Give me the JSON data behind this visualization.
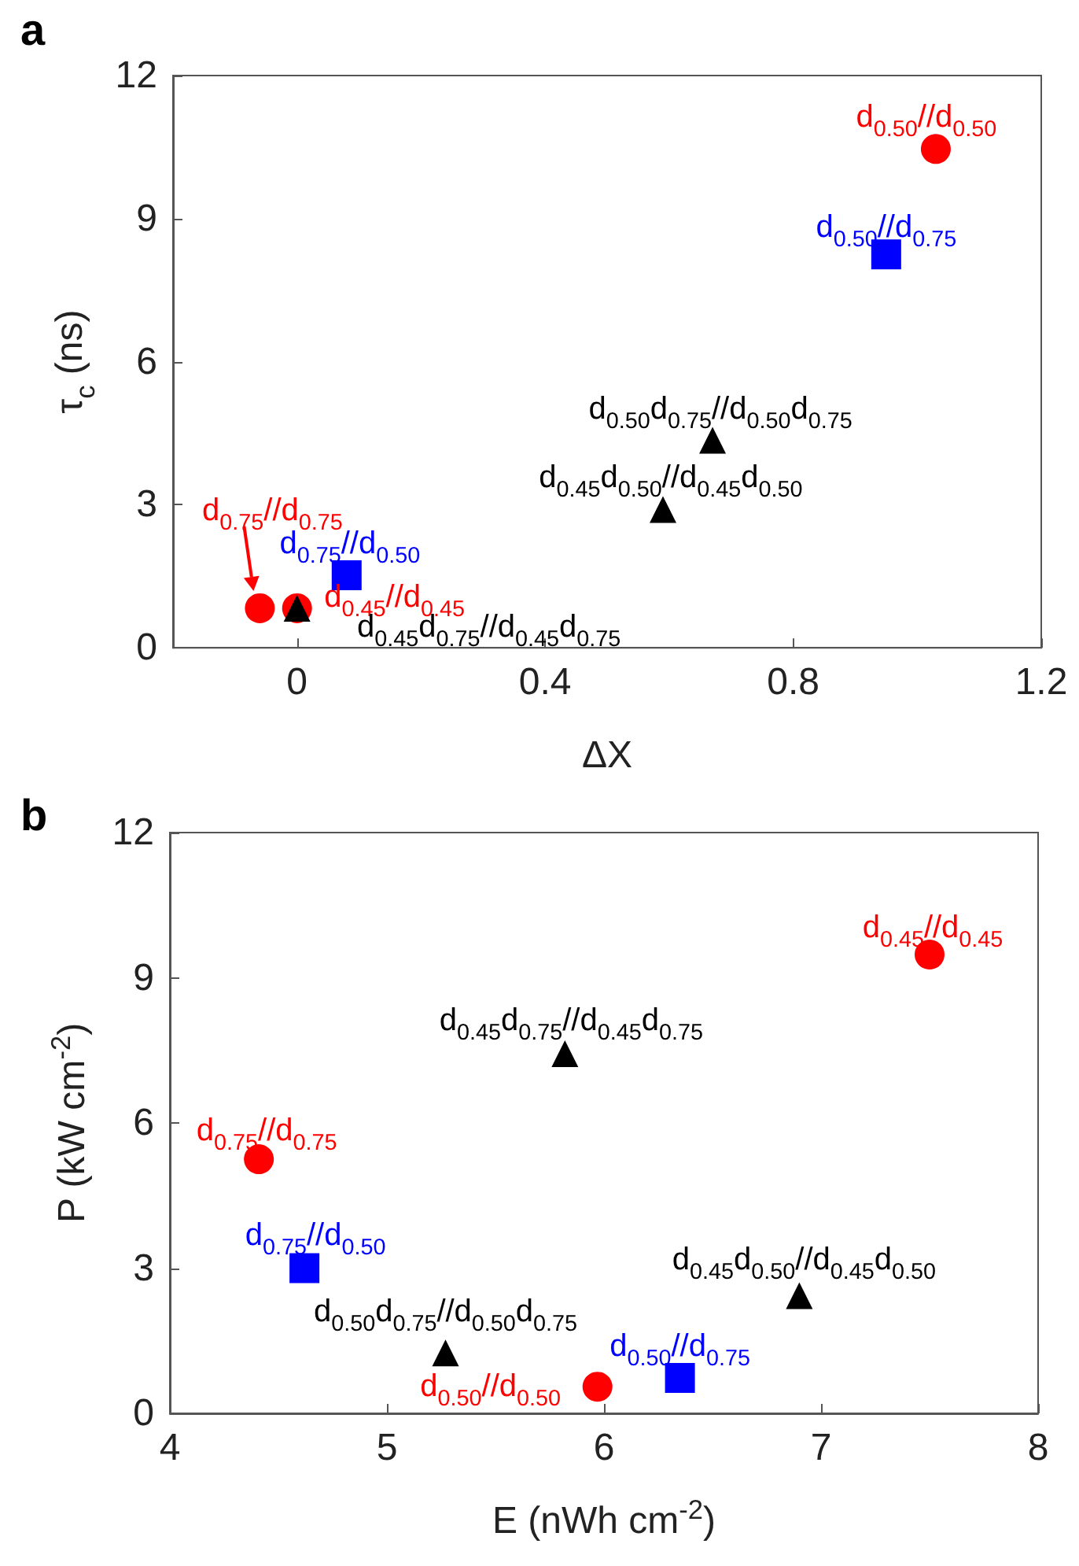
{
  "chart_data": [
    {
      "type": "scatter",
      "title": "a",
      "xlabel": "ΔX",
      "ylabel": "τ$_{c}$ (ns)",
      "xlim": [
        -0.2,
        1.2
      ],
      "xticks": [
        0,
        0.4,
        0.8,
        1.2
      ],
      "ylim": [
        0,
        12
      ],
      "yticks": [
        0,
        3,
        6,
        9,
        12
      ],
      "grid": false,
      "series": [
        {
          "color": "#ff0000",
          "marker": "circle",
          "x": [
            -0.06,
            0,
            1.03
          ],
          "values": [
            0.83,
            0.83,
            10.46
          ]
        },
        {
          "color": "#0000ff",
          "marker": "square",
          "x": [
            0.08,
            0.95
          ],
          "values": [
            1.52,
            8.25
          ]
        },
        {
          "color": "#000000",
          "marker": "triangle",
          "x": [
            0,
            0.59,
            0.67
          ],
          "values": [
            0.83,
            2.9,
            4.35
          ]
        }
      ],
      "annotations": [
        {
          "text": "d$_{0.50}$//d$_{0.50}$",
          "x": 1.03,
          "y": 10.46
        },
        {
          "text": "d$_{0.50}$//d$_{0.75}$",
          "x": 0.95,
          "y": 8.25
        },
        {
          "text": "d$_{0.50}$d$_{0.75}$//d$_{0.50}$d$_{0.75}$",
          "x": 0.67,
          "y": 4.35
        },
        {
          "text": "d$_{0.45}$d$_{0.50}$//d$_{0.45}$d$_{0.50}$",
          "x": 0.59,
          "y": 2.9
        },
        {
          "text": "d$_{0.75}$//d$_{0.50}$",
          "x": 0.08,
          "y": 1.52
        },
        {
          "text": "d$_{0.45}$//d$_{0.45}$",
          "x": 0,
          "y": 0.83
        },
        {
          "text": "d$_{0.45}$d$_{0.75}$//d$_{0.45}$d$_{0.75}$",
          "x": 0,
          "y": 0.83
        },
        {
          "text": "d$_{0.75}$//d$_{0.75}$",
          "x": -0.06,
          "y": 0.83
        }
      ]
    },
    {
      "type": "scatter",
      "title": "b",
      "xlabel": "E (nWh cm$^{-2}$)",
      "ylabel": "P (kW cm$^{-2}$)",
      "xlim": [
        4,
        8
      ],
      "xticks": [
        4,
        5,
        6,
        7,
        8
      ],
      "ylim": [
        0,
        12
      ],
      "yticks": [
        0,
        3,
        6,
        9,
        12
      ],
      "grid": false,
      "series": [
        {
          "color": "#ff0000",
          "marker": "circle",
          "x": [
            7.5,
            4.41,
            5.97
          ],
          "values": [
            9.48,
            5.25,
            0.55
          ]
        },
        {
          "color": "#0000ff",
          "marker": "square",
          "x": [
            4.62,
            6.35
          ],
          "values": [
            3.0,
            0.73
          ]
        },
        {
          "color": "#000000",
          "marker": "triangle",
          "x": [
            5.82,
            5.27,
            6.9
          ],
          "values": [
            7.43,
            1.25,
            2.43
          ]
        }
      ],
      "annotations": [
        {
          "text": "d$_{0.45}$//d$_{0.45}$",
          "x": 7.5,
          "y": 9.48
        },
        {
          "text": "d$_{0.45}$d$_{0.75}$//d$_{0.45}$d$_{0.75}$",
          "x": 5.82,
          "y": 7.43
        },
        {
          "text": "d$_{0.75}$//d$_{0.75}$",
          "x": 4.41,
          "y": 5.25
        },
        {
          "text": "d$_{0.75}$//d$_{0.50}$",
          "x": 4.62,
          "y": 3.0
        },
        {
          "text": "d$_{0.50}$d$_{0.75}$//d$_{0.50}$d$_{0.75}$",
          "x": 5.27,
          "y": 1.25
        },
        {
          "text": "d$_{0.50}$//d$_{0.50}$",
          "x": 5.97,
          "y": 0.55
        },
        {
          "text": "d$_{0.50}$//d$_{0.75}$",
          "x": 6.35,
          "y": 0.73
        },
        {
          "text": "d$_{0.45}$d$_{0.50}$//d$_{0.45}$d$_{0.50}$",
          "x": 6.9,
          "y": 2.43
        }
      ]
    }
  ]
}
